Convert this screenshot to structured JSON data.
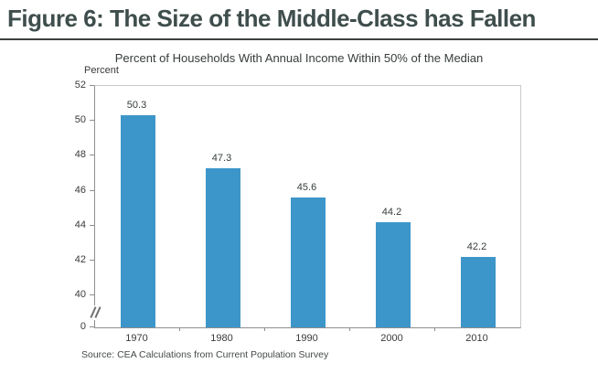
{
  "header": {
    "title": "Figure 6: The Size of the Middle-Class has Fallen"
  },
  "chart": {
    "subtitle": "Percent of Households With Annual Income Within 50% of the Median",
    "y_axis_unit": "Percent",
    "source": "Source: CEA Calculations from Current Population Survey"
  },
  "chart_data": {
    "type": "bar",
    "title": "Percent of Households With Annual Income Within 50% of the Median",
    "categories": [
      "1970",
      "1980",
      "1990",
      "2000",
      "2010"
    ],
    "values": [
      50.3,
      47.3,
      45.6,
      44.2,
      42.2
    ],
    "value_labels": [
      "50.3",
      "47.3",
      "45.6",
      "44.2",
      "42.2"
    ],
    "xlabel": "",
    "ylabel": "Percent",
    "y_ticks": [
      52,
      50,
      48,
      46,
      44,
      42,
      40,
      0
    ],
    "y_axis_break": "between 0 and 40",
    "ylim_upper_segment": [
      40,
      52
    ],
    "grid": false,
    "legend": "none",
    "bar_color": "#3d96c9",
    "source": "Source: CEA Calculations from Current Population Survey"
  },
  "colors": {
    "bar": "#3d96c9",
    "title": "#3f4e4d",
    "rule": "#3b3f3e",
    "axis": "#8f8f8f"
  }
}
